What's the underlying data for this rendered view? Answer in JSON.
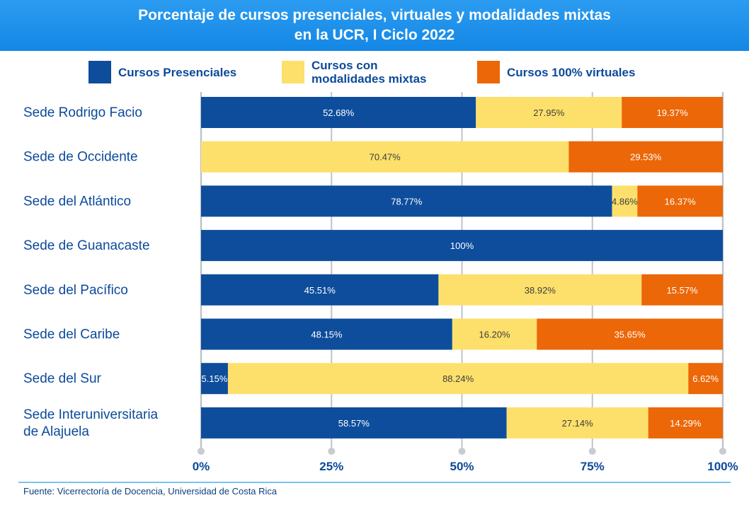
{
  "chart_data": {
    "type": "bar",
    "orientation": "horizontal",
    "stacked": true,
    "title": "Porcentaje de cursos presenciales, virtuales y modalidades mixtas en la UCR, I Ciclo 2022",
    "title_lines": [
      "Porcentaje de cursos presenciales, virtuales y modalidades mixtas",
      "en la UCR, I Ciclo 2022"
    ],
    "categories": [
      "Sede Rodrigo Facio",
      "Sede de Occidente",
      "Sede del Atlántico",
      "Sede de Guanacaste",
      "Sede del Pacífico",
      "Sede del Caribe",
      "Sede del Sur",
      "Sede Interuniversitaria de Alajuela"
    ],
    "category_lines": [
      [
        "Sede Rodrigo Facio"
      ],
      [
        "Sede de Occidente"
      ],
      [
        "Sede del Atlántico"
      ],
      [
        "Sede de Guanacaste"
      ],
      [
        "Sede del Pacífico"
      ],
      [
        "Sede del Caribe"
      ],
      [
        "Sede del Sur"
      ],
      [
        "Sede Interuniversitaria",
        "de Alajuela"
      ]
    ],
    "series": [
      {
        "name": "Cursos Presenciales",
        "color": "#0d4d9c",
        "values": [
          52.68,
          0,
          78.77,
          100,
          45.51,
          48.15,
          5.15,
          58.57
        ],
        "labels": [
          "52.68%",
          "",
          "78.77%",
          "100%",
          "45.51%",
          "48.15%",
          "5.15%",
          "58.57%"
        ]
      },
      {
        "name": "Cursos con modalidades mixtas",
        "color": "#fde06b",
        "values": [
          27.95,
          70.47,
          4.86,
          0,
          38.92,
          16.2,
          88.24,
          27.14
        ],
        "labels": [
          "27.95%",
          "70.47%",
          "4.86%",
          "",
          "38.92%",
          "16.20%",
          "88.24%",
          "27.14%"
        ]
      },
      {
        "name": "Cursos 100% virtuales",
        "color": "#ec6707",
        "values": [
          19.37,
          29.53,
          16.37,
          0,
          15.57,
          35.65,
          6.62,
          14.29
        ],
        "labels": [
          "19.37%",
          "29.53%",
          "16.37%",
          "",
          "15.57%",
          "35.65%",
          "6.62%",
          "14.29%"
        ]
      }
    ],
    "legend": {
      "placement": "top",
      "lines": [
        [
          "Cursos Presenciales"
        ],
        [
          "Cursos con",
          "modalidades mixtas"
        ],
        [
          "Cursos 100% virtuales"
        ]
      ]
    },
    "xlim": [
      0,
      100
    ],
    "xticks": [
      0,
      25,
      50,
      75,
      100
    ],
    "xtick_labels": [
      "0%",
      "25%",
      "50%",
      "75%",
      "100%"
    ],
    "grid": true,
    "xlabel": "",
    "ylabel": ""
  },
  "source": "Fuente: Vicerrectoría de Docencia, Universidad de Costa Rica",
  "colors": {
    "header_bg": "#1b8fea",
    "category_text": "#0c4a9a",
    "grid": "#bfc4cb"
  }
}
